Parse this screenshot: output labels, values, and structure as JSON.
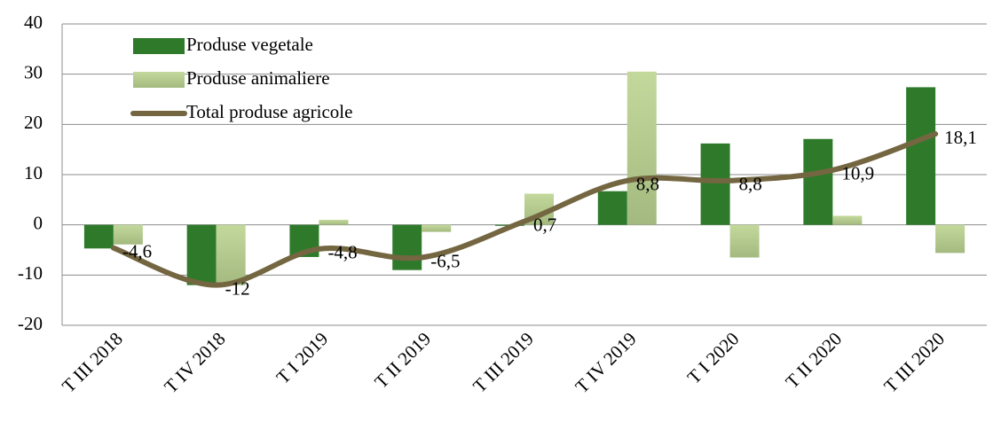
{
  "chart_data": {
    "type": "bar-line",
    "categories": [
      "T III 2018",
      "T IV 2018",
      "T I 2019",
      "T II 2019",
      "T III 2019",
      "T IV 2019",
      "T I 2020",
      "T II 2020",
      "T III 2020"
    ],
    "series": [
      {
        "name": "Produse vegetale",
        "type": "bar",
        "color": "#2e7a2a",
        "values": [
          -4.7,
          -12,
          -6.4,
          -9,
          -0.2,
          6.7,
          16.2,
          17.1,
          27.4
        ]
      },
      {
        "name": "Produse animaliere",
        "type": "bar",
        "color": "#c3d99c",
        "values": [
          -3.9,
          -12,
          1,
          -1.4,
          6.2,
          30.5,
          -6.5,
          1.8,
          -5.6
        ]
      },
      {
        "name": "Total produse agricole",
        "type": "line",
        "color": "#736641",
        "values": [
          -4.6,
          -12,
          -4.8,
          -6.5,
          0.7,
          8.8,
          8.8,
          10.9,
          18.1
        ],
        "value_labels": [
          "-4,6",
          "-12",
          "-4,8",
          "-6,5",
          "0,7",
          "8,8",
          "8,8",
          "10,9",
          "18,1"
        ]
      }
    ],
    "ylim": [
      -20,
      40
    ],
    "yticks": [
      -20,
      -10,
      0,
      10,
      20,
      30,
      40
    ],
    "grid": true,
    "legend": "top-left"
  }
}
